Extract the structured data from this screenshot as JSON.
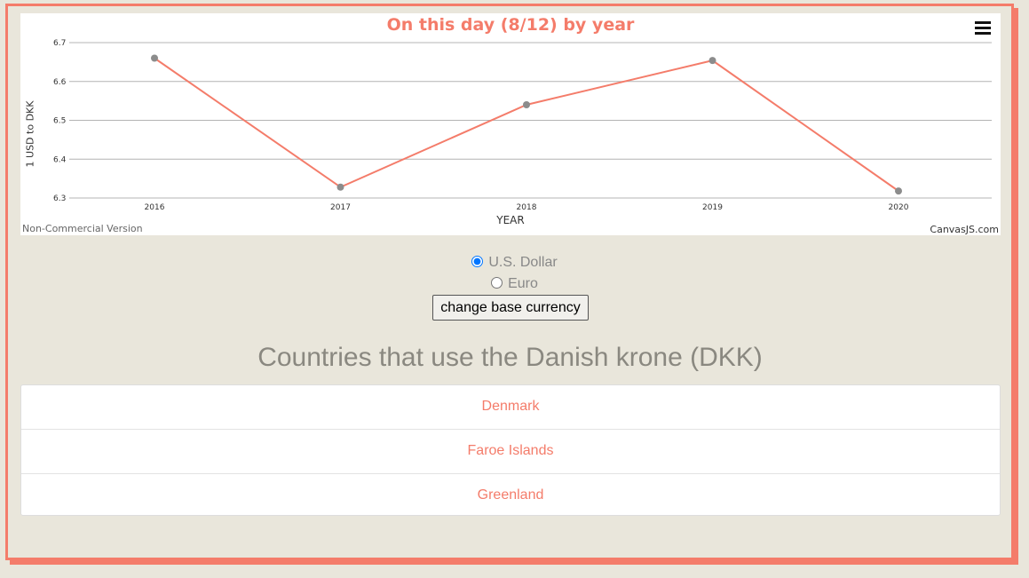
{
  "chart_data": {
    "type": "line",
    "title": "On this day (8/12) by year",
    "xlabel": "YEAR",
    "ylabel": "1 USD to DKK",
    "categories": [
      "2016",
      "2017",
      "2018",
      "2019",
      "2020"
    ],
    "values": [
      6.66,
      6.328,
      6.54,
      6.654,
      6.318
    ],
    "ylim": [
      6.3,
      6.7
    ],
    "yticks": [
      "6.3",
      "6.4",
      "6.5",
      "6.6",
      "6.7"
    ],
    "grid": true,
    "line_color": "#f47c6a",
    "marker_color": "#8c8c8c"
  },
  "chart_credits": {
    "left": "Non-Commercial Version",
    "right": "CanvasJS.com"
  },
  "menu_icon": "hamburger-menu-icon",
  "currency_options": [
    {
      "label": "U.S. Dollar",
      "checked": true
    },
    {
      "label": "Euro",
      "checked": false
    }
  ],
  "change_button_label": "change base currency",
  "countries_heading": "Countries that use the Danish krone (DKK)",
  "countries": [
    "Denmark",
    "Faroe Islands",
    "Greenland"
  ],
  "colors": {
    "accent": "#f47c6a",
    "background": "#e9e6db",
    "heading": "#8a8880"
  }
}
